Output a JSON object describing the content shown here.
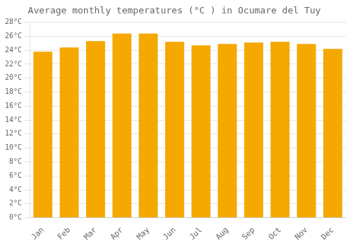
{
  "chart_data": {
    "type": "bar",
    "title": "Average monthly temperatures (°C ) in Ocumare del Tuy",
    "categories": [
      "Jan",
      "Feb",
      "Mar",
      "Apr",
      "May",
      "Jun",
      "Jul",
      "Aug",
      "Sep",
      "Oct",
      "Nov",
      "Dec"
    ],
    "values": [
      23.8,
      24.4,
      25.3,
      26.4,
      26.4,
      25.2,
      24.7,
      24.9,
      25.1,
      25.2,
      24.9,
      24.2
    ],
    "color": "#F5A800",
    "ylim": [
      0,
      28
    ],
    "yticks": [
      {
        "value": 0,
        "label": "0°C"
      },
      {
        "value": 2,
        "label": "2°C"
      },
      {
        "value": 4,
        "label": "4°C"
      },
      {
        "value": 6,
        "label": "6°C"
      },
      {
        "value": 8,
        "label": "8°C"
      },
      {
        "value": 10,
        "label": "10°C"
      },
      {
        "value": 12,
        "label": "12°C"
      },
      {
        "value": 14,
        "label": "14°C"
      },
      {
        "value": 16,
        "label": "16°C"
      },
      {
        "value": 18,
        "label": "18°C"
      },
      {
        "value": 20,
        "label": "20°C"
      },
      {
        "value": 22,
        "label": "22°C"
      },
      {
        "value": 24,
        "label": "24°C"
      },
      {
        "value": 26,
        "label": "26°C"
      },
      {
        "value": 28,
        "label": "28°C"
      }
    ],
    "grid": true
  }
}
